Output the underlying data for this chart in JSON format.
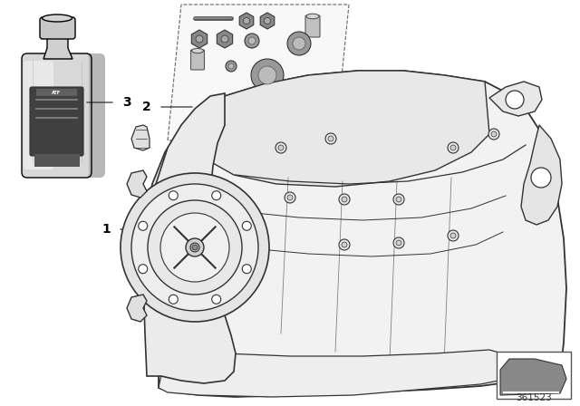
{
  "background_color": "#ffffff",
  "diagram_number": "361523",
  "line_color": "#000000",
  "text_color": "#000000",
  "fig_width": 6.4,
  "fig_height": 4.48,
  "bottle_color": "#e0e0e0",
  "bottle_shadow": "#c0c0c0",
  "bottle_cap_color": "#d0d0d0",
  "bottle_label_color": "#444444",
  "gearbox_face_color": "#f0f0f0",
  "gearbox_line_color": "#333333",
  "parts_box_color": "#f5f5f5"
}
